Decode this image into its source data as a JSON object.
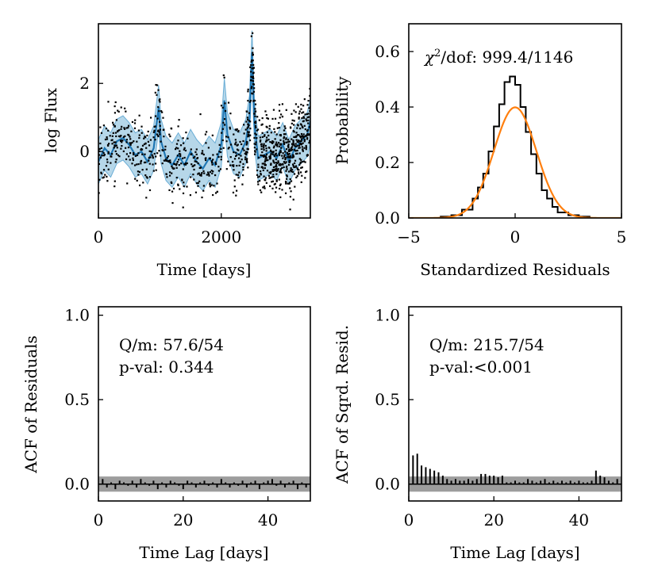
{
  "chart_data": [
    {
      "type": "line",
      "id": "light-curve",
      "title": "",
      "xlabel": "Time [days]",
      "ylabel": "log Flux",
      "xlim": [
        0,
        3450
      ],
      "ylim": [
        -1.95,
        3.75
      ],
      "xticks": [
        0,
        2000
      ],
      "yticks": [
        0,
        2
      ],
      "series": [
        {
          "name": "model mean",
          "color": "#1f77b4",
          "x": [
            0,
            100,
            200,
            300,
            400,
            500,
            600,
            700,
            800,
            900,
            980,
            1020,
            1100,
            1200,
            1300,
            1400,
            1500,
            1600,
            1700,
            1800,
            1900,
            2000,
            2050,
            2100,
            2200,
            2300,
            2400,
            2460,
            2500,
            2540,
            2600,
            2700,
            2800,
            2900,
            3000,
            3100,
            3200,
            3300,
            3400,
            3450
          ],
          "y": [
            -0.3,
            0.1,
            -0.1,
            0.3,
            0.4,
            0.2,
            -0.1,
            0.0,
            -0.3,
            0.1,
            1.3,
            0.3,
            -0.2,
            -0.4,
            -0.1,
            -0.4,
            0.0,
            -0.3,
            -0.5,
            -0.2,
            -0.4,
            0.2,
            1.5,
            0.5,
            0.0,
            -0.1,
            0.3,
            1.0,
            2.9,
            0.8,
            -0.2,
            -0.1,
            0.0,
            -0.2,
            0.2,
            -0.3,
            0.1,
            0.3,
            0.5,
            0.9
          ]
        },
        {
          "name": "model uncertainty band",
          "color": "#9ecae1",
          "halfwidth": 0.65
        },
        {
          "name": "observed flux",
          "color": "#000000",
          "style": "points",
          "count": 1100
        }
      ]
    },
    {
      "type": "bar",
      "id": "residual-histogram",
      "title": "",
      "xlabel": "Standardized Residuals",
      "ylabel": "Probability",
      "xlim": [
        -5,
        5
      ],
      "ylim": [
        0,
        0.7
      ],
      "xticks": [
        -5,
        0,
        5
      ],
      "yticks": [
        0.0,
        0.2,
        0.4,
        0.6
      ],
      "annotation": "/dof: 999.4/1146",
      "annotation_symbol": "χ",
      "annotation_sup": "2",
      "bin_edges": [
        -3.5,
        -3.0,
        -2.5,
        -2.0,
        -1.75,
        -1.5,
        -1.25,
        -1.0,
        -0.75,
        -0.5,
        -0.25,
        0.0,
        0.25,
        0.5,
        0.75,
        1.0,
        1.25,
        1.5,
        1.75,
        2.0,
        2.5,
        3.0,
        3.5
      ],
      "values": [
        0.005,
        0.01,
        0.03,
        0.07,
        0.11,
        0.16,
        0.24,
        0.33,
        0.41,
        0.49,
        0.51,
        0.48,
        0.4,
        0.31,
        0.23,
        0.16,
        0.1,
        0.07,
        0.04,
        0.02,
        0.01,
        0.005
      ],
      "series": [
        {
          "name": "standard normal",
          "color": "#ff7f0e",
          "mean": 0,
          "sd": 1
        }
      ]
    },
    {
      "type": "bar",
      "id": "acf-residuals",
      "title": "",
      "xlabel": "Time Lag [days]",
      "ylabel": "ACF of Residuals",
      "xlim": [
        0,
        50
      ],
      "ylim": [
        -0.1,
        1.05
      ],
      "xticks": [
        0,
        20,
        40
      ],
      "yticks": [
        0.0,
        0.5,
        1.0
      ],
      "q_stat": "Q/m: 57.6/54",
      "p_value": "p-val: 0.344",
      "confidence_band": [
        -0.045,
        0.045
      ],
      "lags": [
        1,
        2,
        3,
        4,
        5,
        6,
        7,
        8,
        9,
        10,
        11,
        12,
        13,
        14,
        15,
        16,
        17,
        18,
        19,
        20,
        21,
        22,
        23,
        24,
        25,
        26,
        27,
        28,
        29,
        30,
        31,
        32,
        33,
        34,
        35,
        36,
        37,
        38,
        39,
        40,
        41,
        42,
        43,
        44,
        45,
        46,
        47,
        48,
        49
      ],
      "values": [
        0.03,
        -0.02,
        0.01,
        -0.03,
        0.02,
        0.01,
        -0.01,
        0.02,
        -0.02,
        0.03,
        0.01,
        -0.01,
        0.02,
        -0.03,
        0.01,
        -0.02,
        0.02,
        0.01,
        -0.01,
        -0.03,
        0.02,
        0.01,
        -0.02,
        0.01,
        0.02,
        -0.01,
        0.01,
        -0.02,
        0.03,
        0.01,
        -0.02,
        0.01,
        -0.01,
        0.02,
        -0.02,
        0.01,
        0.02,
        -0.03,
        0.01,
        0.02,
        0.03,
        -0.01,
        0.02,
        -0.02,
        0.01,
        0.02,
        -0.03,
        0.01,
        -0.02
      ]
    },
    {
      "type": "bar",
      "id": "acf-squared-residuals",
      "title": "",
      "xlabel": "Time Lag [days]",
      "ylabel": "ACF of Sqrd. Resid.",
      "xlim": [
        0,
        50
      ],
      "ylim": [
        -0.1,
        1.05
      ],
      "xticks": [
        0,
        20,
        40
      ],
      "yticks": [
        0.0,
        0.5,
        1.0
      ],
      "q_stat": "Q/m: 215.7/54",
      "p_value": "p-val:<0.001",
      "confidence_band": [
        -0.045,
        0.045
      ],
      "lags": [
        1,
        2,
        3,
        4,
        5,
        6,
        7,
        8,
        9,
        10,
        11,
        12,
        13,
        14,
        15,
        16,
        17,
        18,
        19,
        20,
        21,
        22,
        23,
        24,
        25,
        26,
        27,
        28,
        29,
        30,
        31,
        32,
        33,
        34,
        35,
        36,
        37,
        38,
        39,
        40,
        41,
        42,
        43,
        44,
        45,
        46,
        47,
        48,
        49
      ],
      "values": [
        0.17,
        0.18,
        0.11,
        0.1,
        0.09,
        0.08,
        0.07,
        0.05,
        0.03,
        0.02,
        0.03,
        0.02,
        0.02,
        0.03,
        0.02,
        0.03,
        0.06,
        0.06,
        0.05,
        0.05,
        0.04,
        0.05,
        0.01,
        0.01,
        0.02,
        0.01,
        0.01,
        0.03,
        0.02,
        0.01,
        0.02,
        0.03,
        0.01,
        0.02,
        0.01,
        0.02,
        0.01,
        0.02,
        0.01,
        0.02,
        0.01,
        0.01,
        0.02,
        0.08,
        0.05,
        0.04,
        0.02,
        0.01,
        0.03
      ]
    }
  ]
}
